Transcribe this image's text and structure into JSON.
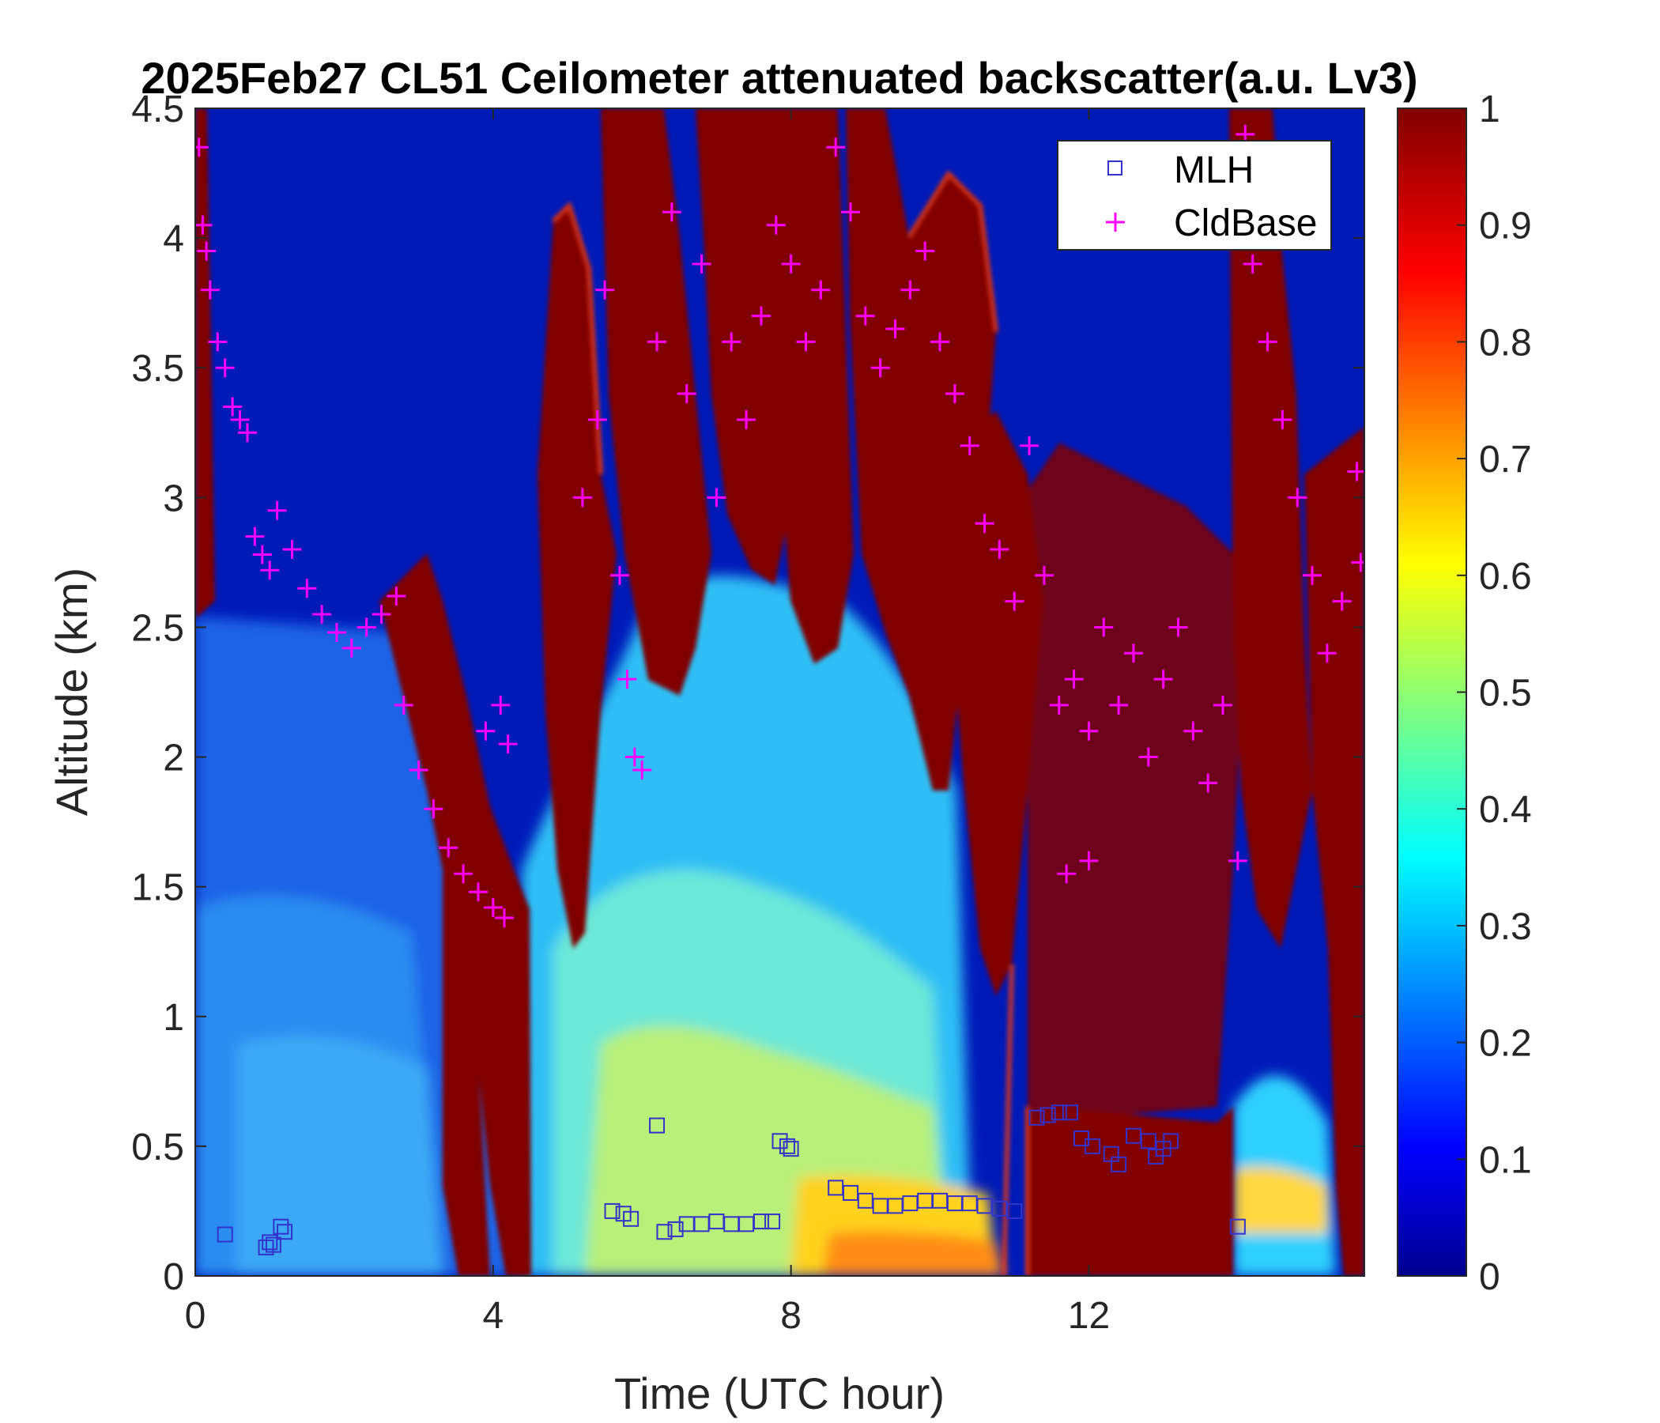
{
  "chart_data": {
    "type": "heatmap",
    "title": "2025Feb27 CL51 Ceilometer attenuated backscatter(a.u. Lv3)",
    "xlabel": "Time (UTC hour)",
    "ylabel": "Altitude (km)",
    "xlim": [
      0,
      15.7
    ],
    "ylim": [
      0,
      4.5
    ],
    "xticks": [
      "0",
      "4",
      "8",
      "12"
    ],
    "yticks": [
      "0",
      "0.5",
      "1",
      "1.5",
      "2",
      "2.5",
      "3",
      "3.5",
      "4",
      "4.5"
    ],
    "colorbar": {
      "colormap": "jet",
      "range": [
        0,
        1
      ],
      "ticks": [
        "0",
        "0.1",
        "0.2",
        "0.3",
        "0.4",
        "0.5",
        "0.6",
        "0.7",
        "0.8",
        "0.9",
        "1"
      ]
    },
    "legend": {
      "placement": "top-right",
      "entries": [
        {
          "label": "MLH",
          "marker": "square",
          "color": "#3333cc"
        },
        {
          "label": "CldBase",
          "marker": "plus",
          "color": "#ff00ff"
        }
      ]
    },
    "series": [
      {
        "name": "MLH",
        "points": [
          [
            0.4,
            0.16
          ],
          [
            0.95,
            0.11
          ],
          [
            1.0,
            0.13
          ],
          [
            1.05,
            0.12
          ],
          [
            1.15,
            0.19
          ],
          [
            1.2,
            0.17
          ],
          [
            5.6,
            0.25
          ],
          [
            5.75,
            0.24
          ],
          [
            5.85,
            0.22
          ],
          [
            6.2,
            0.58
          ],
          [
            6.3,
            0.17
          ],
          [
            6.45,
            0.18
          ],
          [
            6.6,
            0.2
          ],
          [
            6.8,
            0.2
          ],
          [
            7.0,
            0.21
          ],
          [
            7.2,
            0.2
          ],
          [
            7.4,
            0.2
          ],
          [
            7.6,
            0.21
          ],
          [
            7.75,
            0.21
          ],
          [
            7.85,
            0.52
          ],
          [
            7.95,
            0.5
          ],
          [
            8.0,
            0.49
          ],
          [
            8.6,
            0.34
          ],
          [
            8.8,
            0.32
          ],
          [
            9.0,
            0.29
          ],
          [
            9.2,
            0.27
          ],
          [
            9.4,
            0.27
          ],
          [
            9.6,
            0.28
          ],
          [
            9.8,
            0.29
          ],
          [
            10.0,
            0.29
          ],
          [
            10.2,
            0.28
          ],
          [
            10.4,
            0.28
          ],
          [
            10.6,
            0.27
          ],
          [
            10.8,
            0.26
          ],
          [
            11.0,
            0.25
          ],
          [
            11.3,
            0.61
          ],
          [
            11.45,
            0.62
          ],
          [
            11.6,
            0.63
          ],
          [
            11.75,
            0.63
          ],
          [
            11.9,
            0.53
          ],
          [
            12.05,
            0.5
          ],
          [
            12.3,
            0.47
          ],
          [
            12.4,
            0.43
          ],
          [
            12.6,
            0.54
          ],
          [
            12.8,
            0.52
          ],
          [
            12.9,
            0.46
          ],
          [
            13.0,
            0.49
          ],
          [
            13.1,
            0.52
          ],
          [
            14.0,
            0.19
          ]
        ]
      },
      {
        "name": "CldBase",
        "points": [
          [
            0.05,
            4.35
          ],
          [
            0.1,
            4.05
          ],
          [
            0.15,
            3.95
          ],
          [
            0.2,
            3.8
          ],
          [
            0.3,
            3.6
          ],
          [
            0.4,
            3.5
          ],
          [
            0.5,
            3.35
          ],
          [
            0.6,
            3.3
          ],
          [
            0.7,
            3.25
          ],
          [
            0.8,
            2.85
          ],
          [
            0.9,
            2.78
          ],
          [
            1.0,
            2.72
          ],
          [
            1.1,
            2.95
          ],
          [
            1.3,
            2.8
          ],
          [
            1.5,
            2.65
          ],
          [
            1.7,
            2.55
          ],
          [
            1.9,
            2.48
          ],
          [
            2.1,
            2.42
          ],
          [
            2.3,
            2.5
          ],
          [
            2.5,
            2.55
          ],
          [
            2.7,
            2.62
          ],
          [
            2.8,
            2.2
          ],
          [
            3.0,
            1.95
          ],
          [
            3.2,
            1.8
          ],
          [
            3.4,
            1.65
          ],
          [
            3.6,
            1.55
          ],
          [
            3.8,
            1.48
          ],
          [
            4.0,
            1.42
          ],
          [
            4.15,
            1.38
          ],
          [
            3.9,
            2.1
          ],
          [
            4.1,
            2.2
          ],
          [
            4.2,
            2.05
          ],
          [
            5.2,
            3.0
          ],
          [
            5.4,
            3.3
          ],
          [
            5.5,
            3.8
          ],
          [
            5.7,
            2.7
          ],
          [
            5.8,
            2.3
          ],
          [
            5.9,
            2.0
          ],
          [
            6.0,
            1.95
          ],
          [
            6.2,
            3.6
          ],
          [
            6.4,
            4.1
          ],
          [
            6.6,
            3.4
          ],
          [
            6.8,
            3.9
          ],
          [
            7.0,
            3.0
          ],
          [
            7.2,
            3.6
          ],
          [
            7.4,
            3.3
          ],
          [
            7.6,
            3.7
          ],
          [
            7.8,
            4.05
          ],
          [
            8.0,
            3.9
          ],
          [
            8.2,
            3.6
          ],
          [
            8.4,
            3.8
          ],
          [
            8.6,
            4.35
          ],
          [
            8.8,
            4.1
          ],
          [
            9.0,
            3.7
          ],
          [
            9.2,
            3.5
          ],
          [
            9.4,
            3.65
          ],
          [
            9.6,
            3.8
          ],
          [
            9.8,
            3.95
          ],
          [
            10.0,
            3.6
          ],
          [
            10.2,
            3.4
          ],
          [
            10.4,
            3.2
          ],
          [
            10.6,
            2.9
          ],
          [
            10.8,
            2.8
          ],
          [
            11.0,
            2.6
          ],
          [
            11.2,
            3.2
          ],
          [
            11.4,
            2.7
          ],
          [
            11.6,
            2.2
          ],
          [
            11.8,
            2.3
          ],
          [
            12.0,
            2.1
          ],
          [
            12.2,
            2.5
          ],
          [
            12.4,
            2.2
          ],
          [
            12.6,
            2.4
          ],
          [
            12.8,
            2.0
          ],
          [
            13.0,
            2.3
          ],
          [
            13.2,
            2.5
          ],
          [
            13.4,
            2.1
          ],
          [
            13.6,
            1.9
          ],
          [
            13.8,
            2.2
          ],
          [
            14.0,
            1.6
          ],
          [
            14.1,
            4.4
          ],
          [
            14.2,
            3.9
          ],
          [
            14.4,
            3.6
          ],
          [
            14.6,
            3.3
          ],
          [
            14.8,
            3.0
          ],
          [
            15.0,
            2.7
          ],
          [
            15.2,
            2.4
          ],
          [
            15.4,
            2.6
          ],
          [
            15.6,
            3.1
          ],
          [
            15.65,
            2.75
          ],
          [
            12.0,
            1.6
          ],
          [
            11.7,
            1.55
          ]
        ]
      }
    ]
  }
}
